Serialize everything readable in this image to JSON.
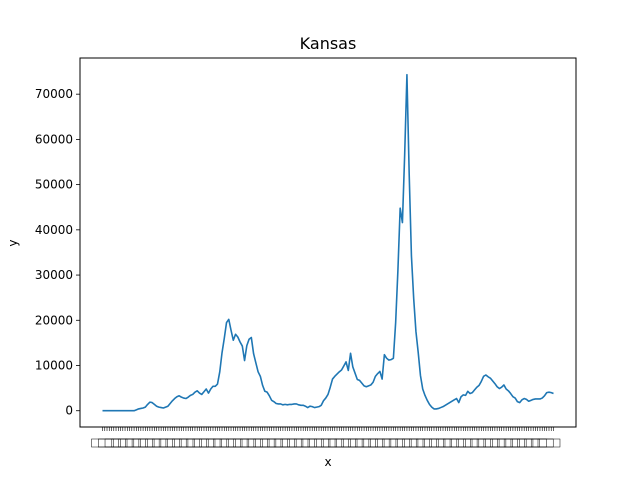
{
  "chart_data": {
    "type": "line",
    "title": "Kansas",
    "xlabel": "x",
    "ylabel": "y",
    "ylim": [
      -3600,
      78000
    ],
    "yticks": [
      0,
      10000,
      20000,
      30000,
      40000,
      50000,
      60000,
      70000
    ],
    "ytick_labels": [
      "0",
      "10000",
      "20000",
      "30000",
      "40000",
      "50000",
      "60000",
      "70000"
    ],
    "xtick_labels_note": "dense overlapping date tick labels, unreadable",
    "line_color": "#1f77b4",
    "series": [
      {
        "values": [
          0,
          0,
          0,
          0,
          0,
          0,
          0,
          0,
          0,
          0,
          0,
          0,
          0,
          0,
          0,
          200,
          400,
          500,
          600,
          800,
          1400,
          1900,
          1800,
          1400,
          1000,
          800,
          700,
          600,
          800,
          1000,
          1600,
          2200,
          2700,
          3100,
          3300,
          3000,
          2800,
          2700,
          3000,
          3400,
          3600,
          4100,
          4400,
          3900,
          3600,
          4200,
          4800,
          3900,
          4800,
          5400,
          5400,
          5900,
          8600,
          12800,
          16000,
          19500,
          20200,
          17800,
          15600,
          16900,
          16300,
          15200,
          14300,
          11100,
          14400,
          15800,
          16200,
          12600,
          10600,
          8600,
          7600,
          5600,
          4300,
          4100,
          3300,
          2300,
          2000,
          1600,
          1500,
          1500,
          1300,
          1400,
          1300,
          1400,
          1400,
          1500,
          1500,
          1300,
          1200,
          1200,
          1000,
          700,
          1000,
          900,
          700,
          800,
          900,
          1200,
          2200,
          2800,
          3600,
          5200,
          7000,
          7600,
          8100,
          8600,
          9000,
          9900,
          10800,
          8900,
          12700,
          9700,
          8300,
          6900,
          6700,
          6100,
          5500,
          5300,
          5500,
          5700,
          6300,
          7600,
          8200,
          8700,
          7000,
          12400,
          11600,
          11200,
          11300,
          11600,
          19500,
          31000,
          44800,
          41600,
          56600,
          74300,
          52400,
          34200,
          24800,
          17500,
          12900,
          7800,
          4800,
          3400,
          2300,
          1400,
          800,
          400,
          400,
          500,
          700,
          900,
          1200,
          1500,
          1800,
          2100,
          2400,
          2700,
          1800,
          3100,
          3500,
          3400,
          4300,
          3800,
          4000,
          4600,
          5200,
          5600,
          6500,
          7600,
          7900,
          7500,
          7200,
          6600,
          6000,
          5300,
          4900,
          5200,
          5700,
          4800,
          4400,
          3800,
          3100,
          2800,
          2000,
          1800,
          2400,
          2700,
          2500,
          2100,
          2300,
          2500,
          2600,
          2600,
          2600,
          2800,
          3300,
          4000,
          4100,
          4000,
          3800
        ]
      }
    ]
  }
}
